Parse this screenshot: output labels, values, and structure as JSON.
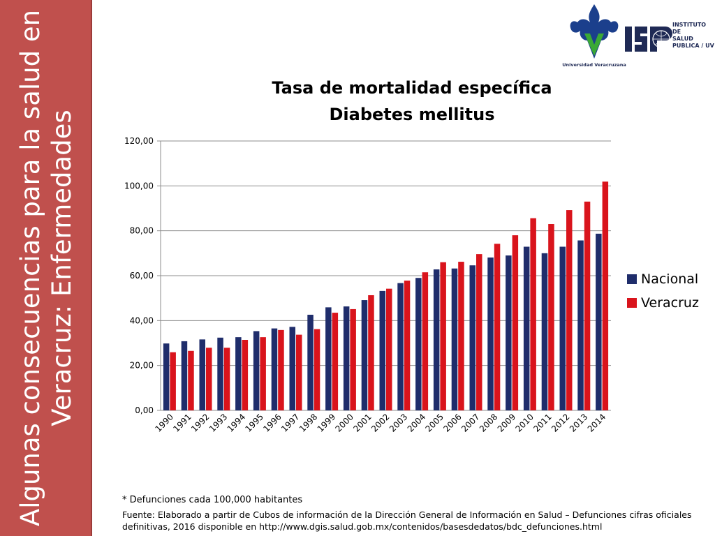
{
  "sidebar": {
    "title_line1": "Algunas consecuencias para la salud en",
    "title_line2": "Veracruz: Enfermedades"
  },
  "logos": {
    "uv_caption": "Universidad Veracruzana",
    "isp_lines": [
      "INSTITUTO",
      "DE",
      "SALUD",
      "PUBLICA / UV"
    ]
  },
  "footer": {
    "note": "* Defunciones cada 100,000 habitantes",
    "source": "Fuente: Elaborado a partir de Cubos de información de la Dirección General de Información en Salud – Defunciones cifras oficiales definitivas, 2016 disponible en  http://www.dgis.salud.gob.mx/contenidos/basesdedatos/bdc_defunciones.html"
  },
  "colors": {
    "sidebar": "#c0504d",
    "nacional": "#1f2d6b",
    "veracruz": "#d9141c",
    "uv_blue": "#1b3f8c",
    "uv_green": "#3aa935"
  },
  "chart_data": {
    "type": "bar",
    "title_line1": "Tasa de mortalidad específica",
    "title_line2": "Diabetes mellitus",
    "categories": [
      "1990",
      "1991",
      "1992",
      "1993",
      "1994",
      "1995",
      "1996",
      "1997",
      "1998",
      "1999",
      "2000",
      "2001",
      "2002",
      "2003",
      "2004",
      "2005",
      "2006",
      "2007",
      "2008",
      "2009",
      "2010",
      "2011",
      "2012",
      "2013",
      "2014"
    ],
    "series": [
      {
        "name": "Nacional",
        "values": [
          29.8,
          30.8,
          31.6,
          32.4,
          32.6,
          35.3,
          36.5,
          37.2,
          42.6,
          45.9,
          46.3,
          49.1,
          53.2,
          56.7,
          59.0,
          62.8,
          63.2,
          64.6,
          68.1,
          69.0,
          72.9,
          70.0,
          72.9,
          75.7,
          78.7
        ]
      },
      {
        "name": "Veracruz",
        "values": [
          25.9,
          26.5,
          27.9,
          27.9,
          31.4,
          32.6,
          35.8,
          33.7,
          36.2,
          43.5,
          45.1,
          51.3,
          54.2,
          57.8,
          61.5,
          66.0,
          66.2,
          69.6,
          74.2,
          78.0,
          85.6,
          83.0,
          89.2,
          93.0,
          101.9
        ]
      }
    ],
    "yticks": [
      "0,00",
      "20,00",
      "40,00",
      "60,00",
      "80,00",
      "100,00",
      "120,00"
    ],
    "ylim": [
      0,
      120
    ],
    "grid": true,
    "legend_position": "right"
  }
}
